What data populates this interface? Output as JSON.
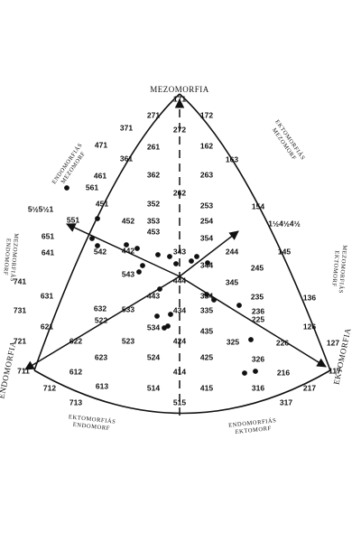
{
  "chart_data": {
    "type": "scatter",
    "apex_labels": {
      "top": "MEZOMORFIA",
      "left": "ENDOMORFIA",
      "right": "EKTOMORFIA"
    },
    "region_labels": {
      "upper_left": [
        "ENDOMORFIÁS",
        "MEZOMORF"
      ],
      "upper_right": [
        "EKTOMORFIÁS",
        "MEZOMORF"
      ],
      "left_side": [
        "MEZOMORFIÁS",
        "ENDOMORF"
      ],
      "right_side": [
        "MEZOMORFIÁS",
        "EKTOMORF"
      ],
      "bottom_left": [
        "EKTOMORFIÁS",
        "ENDOMORF"
      ],
      "bottom_right": [
        "ENDOMORFIÁS",
        "EKTOMORF"
      ]
    },
    "somatotype_codes": [
      "171",
      "271",
      "172",
      "371",
      "272",
      "471",
      "261",
      "162",
      "361",
      "163",
      "461",
      "362",
      "263",
      "561",
      "262",
      "5½5½1",
      "451",
      "352",
      "253",
      "154",
      "551",
      "452",
      "353",
      "254",
      "1½4½4½",
      "651",
      "453",
      "354",
      "145",
      "641",
      "542",
      "442",
      "343",
      "244",
      "543",
      "444",
      "344",
      "245",
      "741",
      "345",
      "631",
      "443",
      "334",
      "235",
      "136",
      "731",
      "632",
      "533",
      "434",
      "335",
      "236",
      "621",
      "522",
      "534",
      "435",
      "225",
      "126",
      "721",
      "622",
      "523",
      "424",
      "325",
      "226",
      "127",
      "711",
      "623",
      "524",
      "425",
      "326",
      "117",
      "612",
      "613",
      "514",
      "414",
      "415",
      "316",
      "216",
      "712",
      "515",
      "217",
      "713",
      "317"
    ],
    "plotted_points": 25
  }
}
